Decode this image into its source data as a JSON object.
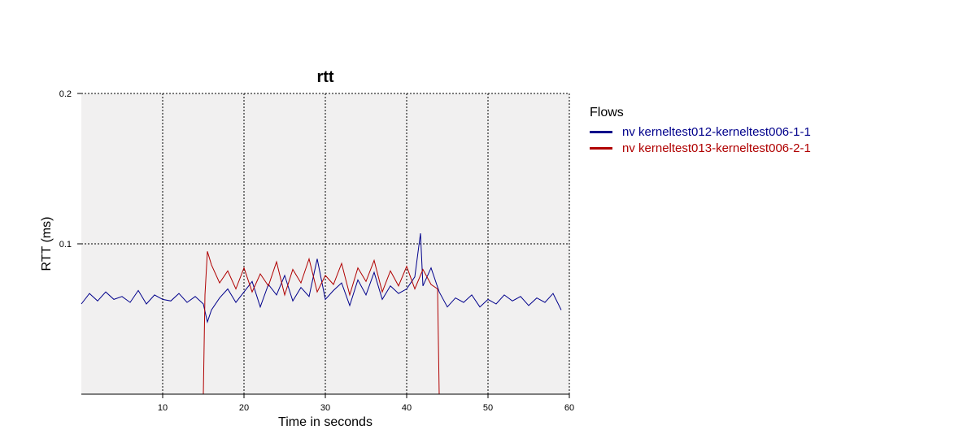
{
  "chart_data": {
    "type": "line",
    "title": "rtt",
    "xlabel": "Time in seconds",
    "ylabel": "RTT (ms)",
    "xlim": [
      0,
      60
    ],
    "ylim": [
      0,
      0.2
    ],
    "x_ticks": [
      10,
      20,
      30,
      40,
      50,
      60
    ],
    "y_ticks": [
      0.1,
      0.2
    ],
    "grid": true,
    "legend_title": "Flows",
    "legend_position": "right",
    "series": [
      {
        "name": "nv kerneltest012-kerneltest006-1-1",
        "color": "#00008b",
        "x": [
          0,
          1,
          2,
          3,
          4,
          5,
          6,
          7,
          8,
          9,
          10,
          11,
          12,
          13,
          14,
          15,
          15.5,
          16,
          17,
          18,
          19,
          20,
          21,
          22,
          23,
          24,
          25,
          26,
          27,
          28,
          29,
          30,
          31,
          32,
          33,
          34,
          35,
          36,
          37,
          38,
          39,
          40,
          41,
          41.7,
          42,
          43,
          44,
          45,
          46,
          47,
          48,
          49,
          50,
          51,
          52,
          53,
          54,
          55,
          56,
          57,
          58,
          59
        ],
        "y": [
          0.06,
          0.067,
          0.062,
          0.068,
          0.063,
          0.065,
          0.061,
          0.069,
          0.06,
          0.066,
          0.063,
          0.062,
          0.067,
          0.061,
          0.065,
          0.06,
          0.048,
          0.056,
          0.064,
          0.07,
          0.061,
          0.068,
          0.075,
          0.058,
          0.073,
          0.066,
          0.079,
          0.062,
          0.071,
          0.065,
          0.09,
          0.063,
          0.069,
          0.074,
          0.059,
          0.076,
          0.066,
          0.081,
          0.063,
          0.072,
          0.067,
          0.07,
          0.078,
          0.107,
          0.072,
          0.084,
          0.068,
          0.058,
          0.064,
          0.061,
          0.066,
          0.058,
          0.063,
          0.06,
          0.066,
          0.062,
          0.065,
          0.059,
          0.064,
          0.061,
          0.067,
          0.056
        ]
      },
      {
        "name": "nv kerneltest013-kerneltest006-2-1",
        "color": "#b00000",
        "x": [
          0,
          14.9,
          15,
          15.2,
          15.5,
          16,
          17,
          18,
          19,
          20,
          21,
          22,
          23,
          24,
          25,
          26,
          27,
          28,
          29,
          30,
          31,
          32,
          33,
          34,
          35,
          36,
          37,
          38,
          39,
          40,
          41,
          42,
          43,
          43.8,
          44,
          60
        ],
        "y": [
          0,
          0,
          0,
          0.066,
          0.095,
          0.086,
          0.074,
          0.082,
          0.07,
          0.084,
          0.068,
          0.08,
          0.072,
          0.088,
          0.066,
          0.083,
          0.074,
          0.09,
          0.068,
          0.079,
          0.073,
          0.087,
          0.066,
          0.084,
          0.075,
          0.089,
          0.068,
          0.082,
          0.072,
          0.085,
          0.07,
          0.083,
          0.073,
          0.07,
          0,
          0
        ]
      }
    ]
  }
}
